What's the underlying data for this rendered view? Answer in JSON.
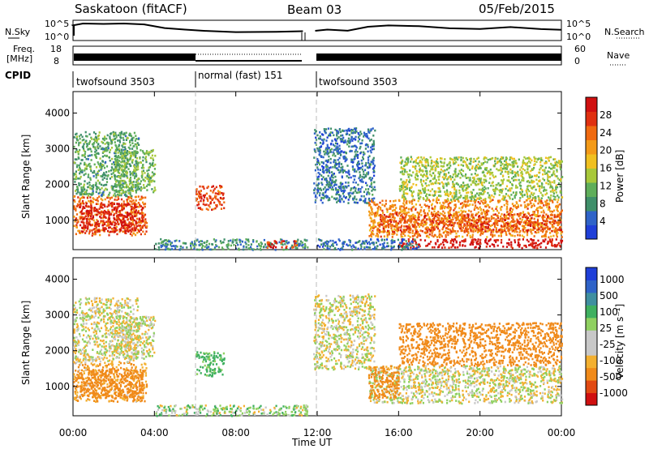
{
  "header": {
    "title": "Saskatoon (fitACF)",
    "beam": "Beam 03",
    "date": "05/Feb/2015"
  },
  "top_panels": {
    "nsky_label": "N.Sky",
    "nsky_ticks": [
      "10^5",
      "10^0"
    ],
    "nsearch_ticks": [
      "10^5",
      "10^0"
    ],
    "nsearch_label": "N.Search",
    "freq_label_1": "Freq.",
    "freq_label_2": "[MHz]",
    "freq_ticks": [
      "18",
      "8"
    ],
    "nave_ticks": [
      "60",
      "0"
    ],
    "nave_label": "Nave",
    "cpid_label": "CPID",
    "cpid_segments": [
      "twofsound 3503",
      "normal (fast) 151",
      "twofsound 3503"
    ]
  },
  "colors": {
    "power_scale": [
      "#1f3fd8",
      "#2f63c8",
      "#3f8f6a",
      "#5fae5a",
      "#a8c83a",
      "#f0c020",
      "#f39a18",
      "#f06a10",
      "#e03010",
      "#d01010"
    ],
    "velocity_scale": [
      "#d01010",
      "#e24a12",
      "#f08a1a",
      "#f3b030",
      "#c8c8c8",
      "#c8c8c8",
      "#8fd060",
      "#3fb060",
      "#3f8fa0",
      "#2f63c8",
      "#1f3fd8"
    ]
  },
  "chart_data": [
    {
      "type": "heatmap",
      "name": "power",
      "xlabel": "",
      "ylabel": "Slant Range [km]",
      "xlim": [
        "00:00",
        "24:00"
      ],
      "ylim": [
        180,
        4600
      ],
      "yticks": [
        1000,
        2000,
        3000,
        4000
      ],
      "colorbar_label": "Power [dB]",
      "colorbar_ticks": [
        4,
        8,
        12,
        16,
        20,
        24,
        28
      ],
      "colorbar_range": [
        0,
        32
      ],
      "regions": [
        {
          "t0": 0.0,
          "t1": 3.6,
          "r0": 600,
          "r1": 1700,
          "value": 24
        },
        {
          "t0": 0.3,
          "t1": 3.4,
          "r0": 700,
          "r1": 1500,
          "value": 30
        },
        {
          "t0": 0.0,
          "t1": 3.2,
          "r0": 1700,
          "r1": 3500,
          "value": 10
        },
        {
          "t0": 2.0,
          "t1": 4.0,
          "r0": 1800,
          "r1": 3000,
          "value": 12
        },
        {
          "t0": 6.0,
          "t1": 7.4,
          "r0": 1300,
          "r1": 2000,
          "value": 26
        },
        {
          "t0": 4.0,
          "t1": 11.5,
          "r0": 200,
          "r1": 500,
          "value": 8
        },
        {
          "t0": 9.5,
          "t1": 11.0,
          "r0": 250,
          "r1": 450,
          "value": 28
        },
        {
          "t0": 11.8,
          "t1": 14.8,
          "r0": 1500,
          "r1": 3600,
          "value": 6
        },
        {
          "t0": 14.5,
          "t1": 24.0,
          "r0": 550,
          "r1": 1600,
          "value": 22
        },
        {
          "t0": 15.0,
          "t1": 24.0,
          "r0": 700,
          "r1": 1200,
          "value": 26
        },
        {
          "t0": 16.0,
          "t1": 24.0,
          "r0": 250,
          "r1": 500,
          "value": 30
        },
        {
          "t0": 16.0,
          "t1": 24.0,
          "r0": 1600,
          "r1": 2800,
          "value": 14
        },
        {
          "t0": 12.0,
          "t1": 17.0,
          "r0": 200,
          "r1": 500,
          "value": 6
        }
      ]
    },
    {
      "type": "heatmap",
      "name": "velocity",
      "xlabel": "Time UT",
      "ylabel": "Slant Range [km]",
      "xlim": [
        "00:00",
        "24:00"
      ],
      "ylim": [
        180,
        4600
      ],
      "xticks": [
        "00:00",
        "04:00",
        "08:00",
        "12:00",
        "16:00",
        "20:00",
        "00:00"
      ],
      "yticks": [
        1000,
        2000,
        3000,
        4000
      ],
      "colorbar_label": "Velocity [m s⁻¹]",
      "colorbar_ticks": [
        "1000",
        "500",
        "100",
        "25",
        "-25",
        "-100",
        "-500",
        "-1000"
      ],
      "regions": [
        {
          "t0": 0.0,
          "t1": 3.6,
          "r0": 600,
          "r1": 1700,
          "value": -120
        },
        {
          "t0": 0.3,
          "t1": 3.4,
          "r0": 700,
          "r1": 1500,
          "value": -300
        },
        {
          "t0": 0.0,
          "t1": 3.2,
          "r0": 1700,
          "r1": 3500,
          "value": 0
        },
        {
          "t0": 2.0,
          "t1": 4.0,
          "r0": 1800,
          "r1": 3000,
          "value": 0
        },
        {
          "t0": 6.0,
          "t1": 7.4,
          "r0": 1300,
          "r1": 2000,
          "value": 150
        },
        {
          "t0": 4.0,
          "t1": 11.5,
          "r0": 200,
          "r1": 500,
          "value": 50
        },
        {
          "t0": 11.8,
          "t1": 14.8,
          "r0": 1500,
          "r1": 3600,
          "value": 0
        },
        {
          "t0": 14.5,
          "t1": 24.0,
          "r0": 550,
          "r1": 1600,
          "value": 0
        },
        {
          "t0": 14.5,
          "t1": 16.0,
          "r0": 700,
          "r1": 1600,
          "value": -200
        },
        {
          "t0": 16.0,
          "t1": 24.0,
          "r0": 1600,
          "r1": 2800,
          "value": -200
        }
      ]
    }
  ]
}
